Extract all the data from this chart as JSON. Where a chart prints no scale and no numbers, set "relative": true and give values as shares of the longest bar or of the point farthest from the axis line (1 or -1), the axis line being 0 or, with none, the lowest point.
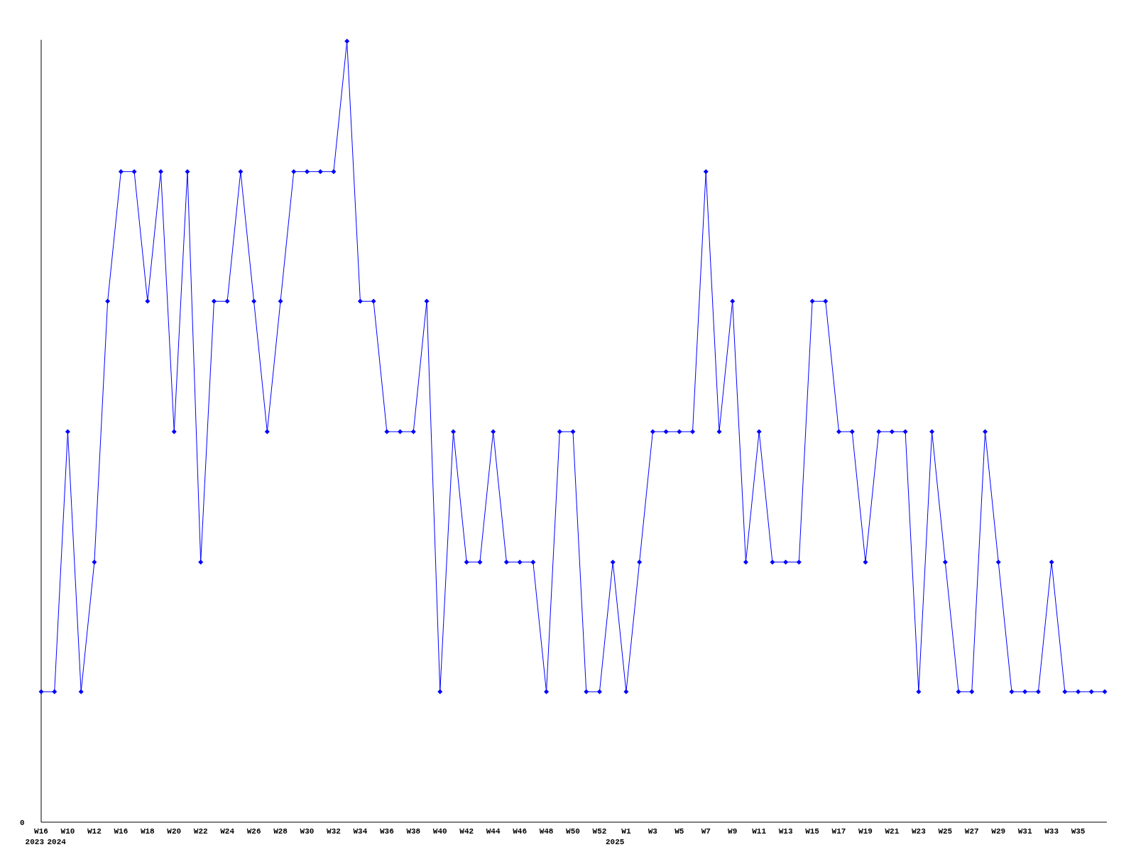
{
  "chart_data": {
    "type": "line",
    "relative": true,
    "marker": "diamond",
    "categories": [
      "W16",
      "2024",
      "W10",
      null,
      "W12",
      null,
      "W16",
      null,
      "W18",
      null,
      "W20",
      null,
      "W22",
      null,
      "W24",
      null,
      "W26",
      null,
      "W28",
      null,
      "W30",
      null,
      "W32",
      null,
      "W34",
      null,
      "W36",
      null,
      "W38",
      null,
      "W40",
      null,
      "W42",
      null,
      "W44",
      null,
      "W46",
      null,
      "W48",
      null,
      "W50",
      null,
      "W52",
      "2025",
      "W1",
      null,
      "W3",
      null,
      "W5",
      null,
      "W7",
      null,
      "W9",
      null,
      "W11",
      null,
      "W13",
      null,
      "W15",
      null,
      "W17",
      null,
      "W19",
      null,
      "W21",
      null,
      "W23",
      null,
      "W25",
      null,
      "W27",
      null,
      "W29",
      null,
      "W31",
      null,
      "W33",
      null,
      "W35",
      null,
      null
    ],
    "series": [
      {
        "color": "#0000ff",
        "values": [
          0.167,
          0.167,
          0.5,
          0.167,
          0.333,
          0.667,
          0.833,
          0.833,
          0.667,
          0.833,
          0.5,
          0.833,
          0.333,
          0.667,
          0.667,
          0.833,
          0.667,
          0.5,
          0.667,
          0.833,
          0.833,
          0.833,
          0.833,
          1,
          0.667,
          0.667,
          0.5,
          0.5,
          0.5,
          0.667,
          0.167,
          0.5,
          0.333,
          0.333,
          0.5,
          0.333,
          0.333,
          0.333,
          0.167,
          0.5,
          0.5,
          0.167,
          0.167,
          0.333,
          0.167,
          0.333,
          0.5,
          0.5,
          0.5,
          0.5,
          0.833,
          0.5,
          0.667,
          0.333,
          0.5,
          0.333,
          0.333,
          0.333,
          0.667,
          0.667,
          0.5,
          0.5,
          0.333,
          0.5,
          0.5,
          0.5,
          0.167,
          0.5,
          0.333,
          0.167,
          0.167,
          0.5,
          0.333,
          0.167,
          0.167,
          0.167,
          0.333,
          0.167,
          0.167,
          0.167,
          0.167
        ]
      }
    ],
    "annotations": [
      "2023",
      "0"
    ]
  }
}
